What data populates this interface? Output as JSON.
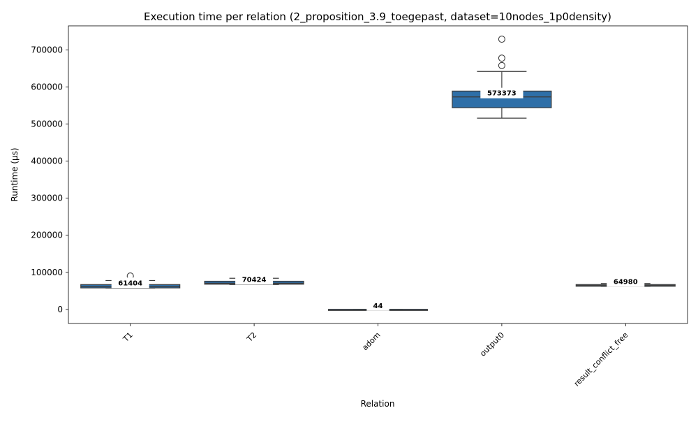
{
  "chart_data": {
    "type": "box",
    "title": "Execution time per relation (2_proposition_3.9_toegepast, dataset=10nodes_1p0density)",
    "xlabel": "Relation",
    "ylabel": "Runtime (µs)",
    "ylim": [
      -38000,
      765000
    ],
    "yticks": [
      0,
      100000,
      200000,
      300000,
      400000,
      500000,
      600000,
      700000
    ],
    "box_color": "#2e6fa8",
    "categories": [
      "T1",
      "T2",
      "adom",
      "output0",
      "result_conflict_free"
    ],
    "boxes": [
      {
        "category": "T1",
        "q1": 58000,
        "median": 61404,
        "q3": 67000,
        "whisker_low": 57500,
        "whisker_high": 78000,
        "outliers": [
          90000
        ],
        "median_label": "61404"
      },
      {
        "category": "T2",
        "q1": 68000,
        "median": 70424,
        "q3": 76000,
        "whisker_low": 67000,
        "whisker_high": 84000,
        "outliers": [],
        "median_label": "70424"
      },
      {
        "category": "adom",
        "q1": 20,
        "median": 44,
        "q3": 80,
        "whisker_low": 10,
        "whisker_high": 120,
        "outliers": [],
        "median_label": "44"
      },
      {
        "category": "output0",
        "q1": 544000,
        "median": 573373,
        "q3": 589000,
        "whisker_low": 516000,
        "whisker_high": 642000,
        "outliers": [
          658000,
          678000,
          729000
        ],
        "median_label": "573373"
      },
      {
        "category": "result_conflict_free",
        "q1": 62500,
        "median": 64980,
        "q3": 67000,
        "whisker_low": 62000,
        "whisker_high": 70000,
        "outliers": [],
        "median_label": "64980"
      }
    ]
  }
}
